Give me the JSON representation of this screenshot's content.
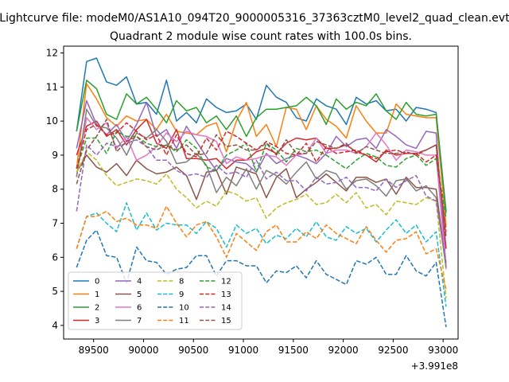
{
  "chart_data": {
    "type": "line",
    "suptitle": "Lightcurve file: modeM0/AS1A10_094T20_9000005316_37363cztM0_level2_quad_clean.evt",
    "title": "Quadrant 2 module wise count rates with 100.0s bins.",
    "xlabel": "",
    "ylabel": "",
    "x_offset": 399100000,
    "x_offset_label": "+3.991e8",
    "xlim": [
      89200,
      93150
    ],
    "ylim": [
      3.6,
      12.2
    ],
    "x_ticks": [
      89500,
      90000,
      90500,
      91000,
      91500,
      92000,
      92500,
      93000
    ],
    "x_tick_labels": [
      "89500",
      "90000",
      "90500",
      "91000",
      "91500",
      "92000",
      "92500",
      "93000"
    ],
    "y_ticks": [
      4,
      5,
      6,
      7,
      8,
      9,
      10,
      11,
      12
    ],
    "y_tick_labels": [
      "4",
      "5",
      "6",
      "7",
      "8",
      "9",
      "10",
      "11",
      "12"
    ],
    "grid": false,
    "legend_placement": "lower-left",
    "x": [
      89330,
      89430,
      89530,
      89630,
      89730,
      89830,
      89930,
      90030,
      90130,
      90230,
      90330,
      90430,
      90530,
      90630,
      90730,
      90830,
      90930,
      91030,
      91130,
      91230,
      91330,
      91430,
      91530,
      91630,
      91730,
      91830,
      91930,
      92030,
      92130,
      92230,
      92330,
      92430,
      92530,
      92630,
      92730,
      92830,
      92930,
      93030
    ],
    "series": [
      {
        "name": "0",
        "color": "#1f77b4",
        "linestyle": "solid",
        "values": [
          9.7,
          11.75,
          11.85,
          11.15,
          11.05,
          11.3,
          10.5,
          10.55,
          10.2,
          11.2,
          10.0,
          10.25,
          9.95,
          10.65,
          10.4,
          10.25,
          10.3,
          10.5,
          10.05,
          11.05,
          10.7,
          10.55,
          10.1,
          10.0,
          10.65,
          10.45,
          10.35,
          9.9,
          10.7,
          10.5,
          10.6,
          10.3,
          10.35,
          10.0,
          10.4,
          10.35,
          10.25,
          7.35
        ]
      },
      {
        "name": "1",
        "color": "#ff7f0e",
        "linestyle": "solid",
        "values": [
          8.6,
          11.1,
          10.65,
          10.1,
          9.85,
          10.15,
          10.0,
          10.05,
          9.75,
          10.2,
          9.7,
          9.65,
          9.6,
          9.85,
          9.95,
          9.1,
          10.0,
          10.55,
          9.55,
          9.9,
          9.25,
          10.4,
          10.35,
          9.75,
          10.45,
          10.05,
          9.85,
          9.5,
          10.45,
          10.0,
          9.65,
          9.65,
          10.5,
          10.2,
          10.15,
          10.1,
          10.1,
          6.9
        ]
      },
      {
        "name": "2",
        "color": "#2ca02c",
        "linestyle": "solid",
        "values": [
          9.7,
          11.2,
          10.95,
          10.2,
          10.05,
          10.8,
          10.5,
          10.7,
          10.35,
          9.95,
          10.6,
          10.3,
          10.4,
          9.95,
          10.15,
          9.75,
          10.15,
          9.55,
          10.1,
          10.35,
          10.35,
          10.4,
          10.45,
          10.7,
          10.45,
          9.9,
          10.65,
          10.35,
          10.55,
          10.45,
          10.8,
          10.3,
          10.05,
          10.55,
          10.2,
          10.15,
          10.2,
          7.3
        ]
      },
      {
        "name": "3",
        "color": "#d62728",
        "linestyle": "solid",
        "values": [
          9.0,
          9.85,
          10.0,
          9.55,
          9.75,
          9.3,
          9.75,
          10.05,
          9.35,
          9.2,
          9.75,
          8.9,
          8.9,
          8.85,
          8.9,
          8.6,
          8.85,
          8.85,
          9.1,
          9.2,
          9.05,
          9.35,
          9.5,
          9.45,
          9.5,
          9.2,
          9.2,
          9.3,
          9.1,
          9.0,
          8.8,
          9.15,
          9.0,
          9.05,
          9.05,
          9.15,
          9.3,
          6.25
        ]
      },
      {
        "name": "4",
        "color": "#9467bd",
        "linestyle": "solid",
        "values": [
          9.2,
          10.6,
          9.9,
          9.6,
          9.9,
          9.4,
          9.9,
          10.55,
          9.55,
          9.75,
          9.2,
          9.85,
          9.4,
          8.95,
          8.55,
          8.9,
          8.8,
          8.75,
          8.5,
          9.05,
          8.75,
          8.9,
          9.0,
          8.9,
          8.75,
          9.05,
          9.55,
          9.25,
          9.45,
          9.5,
          9.2,
          9.75,
          9.55,
          9.3,
          9.2,
          9.7,
          9.65,
          5.7
        ]
      },
      {
        "name": "5",
        "color": "#8c564b",
        "linestyle": "solid",
        "values": [
          8.5,
          9.0,
          8.65,
          8.5,
          8.75,
          8.4,
          8.85,
          8.6,
          8.45,
          8.5,
          8.65,
          8.4,
          7.7,
          8.5,
          8.55,
          7.85,
          8.65,
          8.55,
          8.45,
          7.75,
          8.35,
          8.6,
          7.75,
          8.0,
          8.2,
          8.45,
          8.2,
          7.95,
          8.35,
          8.35,
          8.2,
          8.3,
          7.85,
          8.35,
          8.05,
          8.05,
          8.0,
          5.7
        ]
      },
      {
        "name": "6",
        "color": "#e377c2",
        "linestyle": "solid",
        "values": [
          8.4,
          10.1,
          9.75,
          9.95,
          9.2,
          9.55,
          8.85,
          9.0,
          9.25,
          9.65,
          9.4,
          9.7,
          9.6,
          9.55,
          9.4,
          8.75,
          8.95,
          8.85,
          8.9,
          9.0,
          8.95,
          8.7,
          9.0,
          9.05,
          9.5,
          9.05,
          9.15,
          9.15,
          9.05,
          9.25,
          9.65,
          9.3,
          8.85,
          9.15,
          9.1,
          9.0,
          9.0,
          5.65
        ]
      },
      {
        "name": "7",
        "color": "#7f7f7f",
        "linestyle": "solid",
        "values": [
          8.35,
          10.35,
          9.85,
          9.8,
          9.5,
          9.0,
          9.65,
          9.5,
          9.75,
          9.4,
          8.75,
          8.8,
          9.05,
          8.7,
          7.9,
          8.35,
          8.1,
          8.6,
          8.0,
          8.55,
          8.4,
          8.15,
          8.5,
          8.8,
          8.3,
          8.55,
          8.45,
          8.0,
          8.25,
          8.3,
          8.1,
          7.8,
          8.25,
          8.3,
          7.95,
          8.1,
          7.75,
          5.7
        ]
      },
      {
        "name": "8",
        "color": "#bcbd22",
        "linestyle": "dashed",
        "values": [
          8.5,
          9.1,
          8.85,
          8.4,
          8.1,
          8.2,
          8.3,
          8.25,
          8.15,
          8.45,
          8.0,
          7.75,
          7.45,
          7.65,
          7.5,
          7.95,
          7.85,
          7.65,
          7.75,
          7.15,
          7.45,
          7.6,
          7.7,
          7.85,
          7.55,
          7.6,
          7.85,
          7.6,
          7.9,
          7.45,
          7.55,
          7.25,
          7.65,
          7.6,
          7.55,
          7.75,
          7.65,
          4.8
        ]
      },
      {
        "name": "9",
        "color": "#17becf",
        "linestyle": "dashed",
        "values": [
          6.25,
          7.2,
          7.3,
          7.0,
          6.75,
          7.6,
          6.8,
          7.3,
          6.8,
          7.0,
          6.95,
          6.95,
          6.7,
          7.05,
          6.85,
          6.3,
          6.95,
          6.7,
          6.85,
          6.4,
          6.65,
          6.55,
          6.85,
          6.6,
          7.05,
          6.6,
          6.5,
          6.9,
          6.7,
          6.85,
          6.45,
          6.8,
          7.1,
          6.7,
          6.95,
          6.45,
          6.75,
          4.55
        ]
      },
      {
        "name": "10",
        "color": "#1f77b4",
        "linestyle": "dashed",
        "values": [
          5.7,
          6.5,
          6.8,
          6.05,
          6.0,
          5.25,
          6.3,
          5.9,
          5.85,
          5.5,
          5.65,
          5.7,
          6.05,
          6.05,
          5.45,
          5.9,
          5.9,
          5.75,
          5.75,
          5.25,
          5.6,
          5.55,
          5.75,
          5.4,
          5.9,
          5.5,
          5.35,
          5.2,
          5.9,
          5.8,
          6.0,
          5.5,
          5.5,
          6.05,
          5.6,
          5.45,
          5.85,
          3.95
        ]
      },
      {
        "name": "11",
        "color": "#ff7f0e",
        "linestyle": "dashed",
        "values": [
          6.25,
          7.2,
          7.2,
          7.35,
          7.05,
          7.15,
          6.95,
          6.95,
          6.85,
          7.5,
          7.0,
          6.6,
          6.95,
          7.05,
          6.6,
          6.0,
          6.7,
          6.45,
          6.2,
          6.75,
          6.95,
          6.45,
          6.45,
          6.75,
          6.55,
          6.95,
          6.7,
          6.55,
          6.4,
          6.9,
          6.5,
          6.15,
          6.5,
          6.55,
          6.75,
          6.1,
          6.25,
          5.05
        ]
      },
      {
        "name": "12",
        "color": "#2ca02c",
        "linestyle": "dashed",
        "values": [
          8.6,
          9.5,
          9.5,
          9.05,
          9.7,
          9.55,
          9.55,
          9.35,
          9.25,
          9.3,
          9.1,
          9.45,
          9.2,
          8.65,
          8.55,
          9.0,
          9.15,
          9.35,
          8.5,
          9.35,
          9.15,
          8.8,
          9.2,
          9.1,
          9.15,
          9.0,
          8.8,
          8.6,
          8.85,
          9.05,
          8.95,
          8.7,
          8.65,
          8.9,
          9.0,
          8.7,
          8.9,
          7.15
        ]
      },
      {
        "name": "13",
        "color": "#d62728",
        "linestyle": "dashed",
        "values": [
          8.6,
          9.75,
          9.9,
          9.6,
          9.65,
          9.95,
          9.7,
          9.45,
          9.6,
          9.0,
          9.6,
          9.05,
          8.95,
          9.5,
          9.15,
          9.7,
          9.55,
          9.35,
          9.15,
          9.4,
          9.25,
          9.05,
          9.0,
          9.35,
          8.8,
          9.25,
          9.05,
          9.1,
          9.15,
          9.0,
          8.9,
          9.1,
          9.15,
          9.05,
          9.05,
          8.8,
          9.0,
          6.75
        ]
      },
      {
        "name": "14",
        "color": "#9467bd",
        "linestyle": "dashed",
        "values": [
          7.35,
          9.3,
          9.0,
          9.35,
          9.25,
          9.35,
          9.45,
          9.25,
          8.85,
          8.85,
          8.55,
          8.4,
          8.45,
          8.35,
          8.7,
          8.45,
          8.5,
          8.35,
          8.85,
          8.3,
          8.5,
          8.25,
          8.25,
          7.95,
          8.35,
          8.15,
          8.2,
          8.35,
          8.05,
          8.05,
          7.95,
          8.3,
          8.05,
          8.25,
          8.4,
          7.8,
          7.65,
          5.85
        ]
      },
      {
        "name": "15",
        "color": "#8c564b",
        "linestyle": "dashed",
        "values": [
          8.15,
          9.15,
          9.55,
          10.05,
          9.1,
          9.4,
          9.55,
          9.25,
          9.15,
          9.3,
          9.15,
          9.3,
          9.0,
          9.05,
          9.6,
          9.25,
          9.3,
          9.15,
          9.15,
          9.35,
          9.0,
          9.45,
          9.05,
          9.05,
          9.4,
          9.3,
          9.2,
          9.35,
          9.05,
          9.25,
          9.15,
          9.05,
          9.05,
          9.1,
          9.0,
          9.15,
          9.3,
          6.6
        ]
      }
    ]
  }
}
